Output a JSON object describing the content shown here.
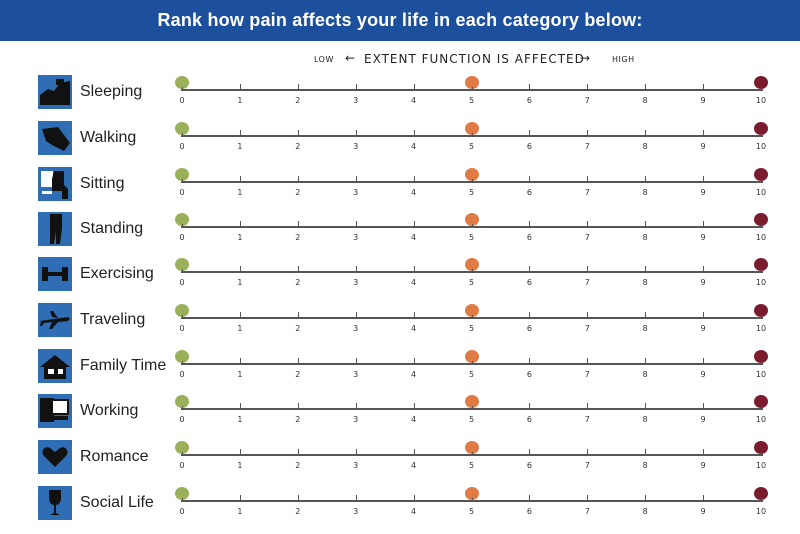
{
  "header": {
    "title": "Rank how pain affects your life in each category below:"
  },
  "axis": {
    "low": "LOW",
    "arrow_left": "←",
    "caption": "EXTENT FUNCTION IS AFFECTED",
    "arrow_right": "→",
    "high": "HIGH"
  },
  "scale": {
    "ticks": [
      "0",
      "1",
      "2",
      "3",
      "4",
      "5",
      "6",
      "7",
      "8",
      "9",
      "10"
    ],
    "markers": [
      {
        "value": 0,
        "color": "#9bb05a"
      },
      {
        "value": 5,
        "color": "#e07b45"
      },
      {
        "value": 10,
        "color": "#7a1b2e"
      }
    ]
  },
  "colors": {
    "banner": "#1c4f9c",
    "icon_bg": "#2f6db5"
  },
  "categories": [
    {
      "label": "Sleeping",
      "icon": "sleeping-icon"
    },
    {
      "label": "Walking",
      "icon": "walking-icon"
    },
    {
      "label": "Sitting",
      "icon": "sitting-icon"
    },
    {
      "label": "Standing",
      "icon": "standing-icon"
    },
    {
      "label": "Exercising",
      "icon": "dumbbell-icon"
    },
    {
      "label": "Traveling",
      "icon": "airplane-icon"
    },
    {
      "label": "Family Time",
      "icon": "house-icon"
    },
    {
      "label": "Working",
      "icon": "computer-icon"
    },
    {
      "label": "Romance",
      "icon": "heart-icon"
    },
    {
      "label": "Social Life",
      "icon": "wine-glass-icon"
    }
  ]
}
